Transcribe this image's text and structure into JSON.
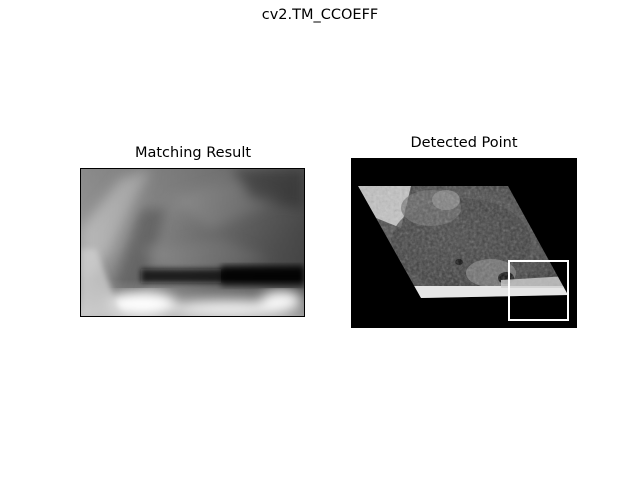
{
  "window": {
    "suptitle": "cv2.TM_CCOEFF"
  },
  "left_axes": {
    "title": "Matching Result"
  },
  "right_axes": {
    "title": "Detected Point"
  },
  "colors": {
    "background": "#ffffff",
    "axes_frame": "#000000",
    "detection_box": "#ffffff"
  }
}
